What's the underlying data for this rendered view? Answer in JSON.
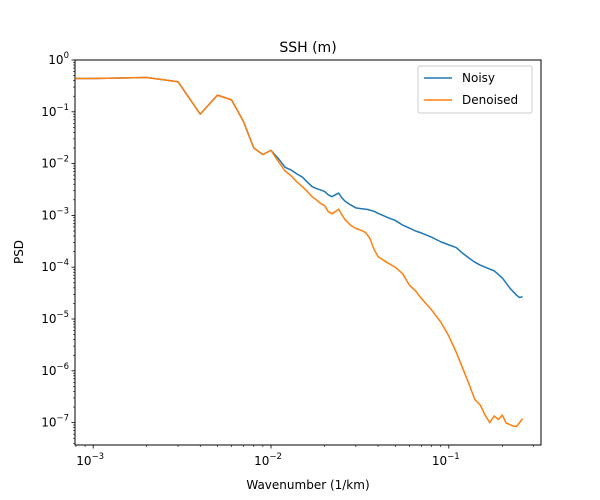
{
  "chart_data": {
    "type": "line",
    "title": "SSH (m)",
    "xlabel": "Wavenumber (1/km)",
    "ylabel": "PSD",
    "xscale": "log",
    "yscale": "log",
    "xlim": [
      0.00079,
      0.33
    ],
    "ylim": [
      3.7e-08,
      1.0
    ],
    "xticks": [
      {
        "value": 0.001,
        "base": "10",
        "exp": "−3"
      },
      {
        "value": 0.01,
        "base": "10",
        "exp": "−2"
      },
      {
        "value": 0.1,
        "base": "10",
        "exp": "−1"
      }
    ],
    "yticks": [
      {
        "value": 1e-07,
        "base": "10",
        "exp": "−7"
      },
      {
        "value": 1e-06,
        "base": "10",
        "exp": "−6"
      },
      {
        "value": 1e-05,
        "base": "10",
        "exp": "−5"
      },
      {
        "value": 0.0001,
        "base": "10",
        "exp": "−4"
      },
      {
        "value": 0.001,
        "base": "10",
        "exp": "−3"
      },
      {
        "value": 0.01,
        "base": "10",
        "exp": "−2"
      },
      {
        "value": 0.1,
        "base": "10",
        "exp": "−1"
      },
      {
        "value": 1.0,
        "base": "10",
        "exp": "0"
      }
    ],
    "grid": false,
    "legend_position": "top-right",
    "series": [
      {
        "name": "Noisy",
        "color": "#1f77b4",
        "points": [
          [
            0.0008,
            0.44
          ],
          [
            0.001,
            0.44
          ],
          [
            0.002,
            0.46
          ],
          [
            0.003,
            0.38
          ],
          [
            0.004,
            0.09
          ],
          [
            0.005,
            0.21
          ],
          [
            0.006,
            0.17
          ],
          [
            0.007,
            0.065
          ],
          [
            0.008,
            0.02
          ],
          [
            0.009,
            0.015
          ],
          [
            0.01,
            0.018
          ],
          [
            0.011,
            0.0125
          ],
          [
            0.012,
            0.0085
          ],
          [
            0.013,
            0.0075
          ],
          [
            0.014,
            0.0063
          ],
          [
            0.015,
            0.0055
          ],
          [
            0.016,
            0.0044
          ],
          [
            0.017,
            0.0036
          ],
          [
            0.018,
            0.0033
          ],
          [
            0.019,
            0.0031
          ],
          [
            0.02,
            0.0029
          ],
          [
            0.021,
            0.0025
          ],
          [
            0.022,
            0.0023
          ],
          [
            0.023,
            0.0025
          ],
          [
            0.024,
            0.0027
          ],
          [
            0.025,
            0.0022
          ],
          [
            0.026,
            0.0019
          ],
          [
            0.028,
            0.0016
          ],
          [
            0.03,
            0.0014
          ],
          [
            0.032,
            0.00135
          ],
          [
            0.035,
            0.0013
          ],
          [
            0.038,
            0.0012
          ],
          [
            0.04,
            0.0011
          ],
          [
            0.045,
            0.00092
          ],
          [
            0.05,
            0.0008
          ],
          [
            0.055,
            0.00065
          ],
          [
            0.06,
            0.00057
          ],
          [
            0.065,
            0.0005
          ],
          [
            0.07,
            0.00046
          ],
          [
            0.08,
            0.00038
          ],
          [
            0.09,
            0.00031
          ],
          [
            0.1,
            0.00027
          ],
          [
            0.11,
            0.00024
          ],
          [
            0.12,
            0.000185
          ],
          [
            0.13,
            0.00015
          ],
          [
            0.14,
            0.000125
          ],
          [
            0.15,
            0.00011
          ],
          [
            0.16,
            0.0001
          ],
          [
            0.18,
            8.5e-05
          ],
          [
            0.2,
            6.2e-05
          ],
          [
            0.22,
            4e-05
          ],
          [
            0.24,
            2.9e-05
          ],
          [
            0.25,
            2.6e-05
          ],
          [
            0.26,
            2.7e-05
          ]
        ]
      },
      {
        "name": "Denoised",
        "color": "#ff7f0e",
        "points": [
          [
            0.0008,
            0.44
          ],
          [
            0.001,
            0.44
          ],
          [
            0.002,
            0.46
          ],
          [
            0.003,
            0.38
          ],
          [
            0.004,
            0.09
          ],
          [
            0.005,
            0.21
          ],
          [
            0.006,
            0.17
          ],
          [
            0.007,
            0.065
          ],
          [
            0.008,
            0.02
          ],
          [
            0.009,
            0.015
          ],
          [
            0.01,
            0.018
          ],
          [
            0.011,
            0.011
          ],
          [
            0.012,
            0.0072
          ],
          [
            0.013,
            0.0058
          ],
          [
            0.014,
            0.0044
          ],
          [
            0.015,
            0.0036
          ],
          [
            0.016,
            0.0029
          ],
          [
            0.017,
            0.0023
          ],
          [
            0.018,
            0.002
          ],
          [
            0.019,
            0.0017
          ],
          [
            0.02,
            0.00155
          ],
          [
            0.021,
            0.00118
          ],
          [
            0.022,
            0.00108
          ],
          [
            0.023,
            0.00118
          ],
          [
            0.024,
            0.00132
          ],
          [
            0.025,
            0.00104
          ],
          [
            0.026,
            0.00084
          ],
          [
            0.028,
            0.00065
          ],
          [
            0.03,
            0.00056
          ],
          [
            0.032,
            0.00052
          ],
          [
            0.034,
            0.00047
          ],
          [
            0.036,
            0.00036
          ],
          [
            0.038,
            0.00022
          ],
          [
            0.04,
            0.00016
          ],
          [
            0.045,
            0.000123
          ],
          [
            0.05,
            0.0001
          ],
          [
            0.055,
            7.5e-05
          ],
          [
            0.06,
            4.5e-05
          ],
          [
            0.065,
            3.5e-05
          ],
          [
            0.07,
            2.5e-05
          ],
          [
            0.08,
            1.5e-05
          ],
          [
            0.09,
            8.8e-06
          ],
          [
            0.1,
            4.7e-06
          ],
          [
            0.11,
            2.3e-06
          ],
          [
            0.12,
            1.1e-06
          ],
          [
            0.13,
            5.5e-07
          ],
          [
            0.14,
            2.8e-07
          ],
          [
            0.15,
            2.2e-07
          ],
          [
            0.16,
            1.4e-07
          ],
          [
            0.17,
            1e-07
          ],
          [
            0.18,
            1.35e-07
          ],
          [
            0.19,
            1.15e-07
          ],
          [
            0.2,
            1.4e-07
          ],
          [
            0.21,
            9.8e-08
          ],
          [
            0.22,
            9.2e-08
          ],
          [
            0.23,
            8.6e-08
          ],
          [
            0.24,
            8.4e-08
          ],
          [
            0.25,
            1e-07
          ],
          [
            0.26,
            1.2e-07
          ]
        ]
      }
    ]
  }
}
